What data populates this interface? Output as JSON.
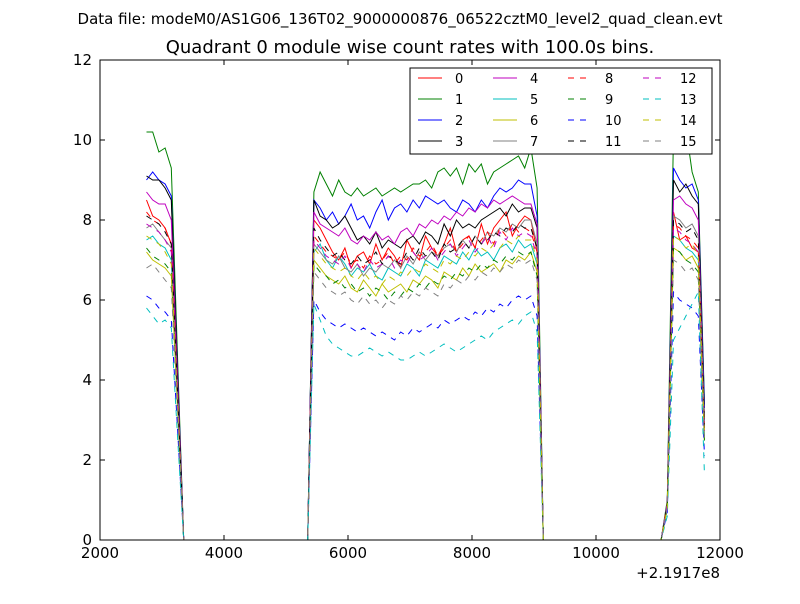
{
  "suptitle": "Data file: modeM0/AS1G06_136T02_9000000876_06522cztM0_level2_quad_clean.evt",
  "chart_data": {
    "type": "line",
    "title": "Quadrant 0 module wise count rates with 100.0s bins.",
    "xlabel": "",
    "ylabel": "",
    "x_offset_label": "+2.1917e8",
    "xlim": [
      2000,
      12000
    ],
    "ylim": [
      0,
      12
    ],
    "x_ticks": [
      2000,
      4000,
      6000,
      8000,
      10000,
      12000
    ],
    "y_ticks": [
      0,
      2,
      4,
      6,
      8,
      10,
      12
    ],
    "grid": false,
    "legend_position": "top-right",
    "legend_columns": 4,
    "x": [
      2750,
      2850,
      2950,
      3050,
      3150,
      3250,
      3350,
      3450,
      5350,
      5450,
      5550,
      5650,
      5750,
      5850,
      5950,
      6050,
      6150,
      6250,
      6350,
      6450,
      6550,
      6650,
      6750,
      6850,
      6950,
      7050,
      7150,
      7250,
      7350,
      7450,
      7550,
      7650,
      7750,
      7850,
      7950,
      8050,
      8150,
      8250,
      8350,
      8450,
      8550,
      8650,
      8750,
      8850,
      8950,
      9050,
      9150,
      9250,
      11050,
      11150,
      11250,
      11350,
      11450,
      11550,
      11650,
      11750
    ],
    "series": [
      {
        "name": "0",
        "color": "#ff0000",
        "dash": "solid",
        "base": [
          8.5,
          8.1,
          8.0,
          7.8,
          7.4,
          4.0,
          0,
          0,
          0,
          8.0,
          7.8,
          7.5,
          7.2,
          7.0,
          7.3,
          6.8,
          7.1,
          7.2,
          6.9,
          7.4,
          7.0,
          7.3,
          7.1,
          6.8,
          7.5,
          7.2,
          7.0,
          7.6,
          7.3,
          7.1,
          7.4,
          7.8,
          7.2,
          7.5,
          7.6,
          7.3,
          7.9,
          7.4,
          7.8,
          8.0,
          8.2,
          7.6,
          7.9,
          8.1,
          8.0,
          7.2,
          0,
          0,
          0,
          0.9,
          8.2,
          7.5,
          7.6,
          7.3,
          7.2,
          2.9
        ]
      },
      {
        "name": "1",
        "color": "#008000",
        "dash": "solid",
        "base": [
          10.2,
          10.2,
          9.7,
          9.8,
          9.3,
          4.6,
          0,
          0,
          0,
          8.7,
          9.2,
          8.9,
          8.6,
          9.0,
          8.7,
          8.6,
          8.8,
          8.6,
          8.7,
          8.8,
          8.6,
          8.7,
          8.8,
          8.7,
          8.8,
          8.9,
          8.9,
          9.0,
          8.8,
          9.2,
          9.3,
          9.1,
          9.3,
          8.9,
          9.4,
          9.2,
          9.4,
          8.9,
          9.2,
          9.3,
          9.4,
          9.5,
          9.6,
          9.3,
          9.8,
          8.8,
          0,
          0,
          0,
          1.0,
          10.2,
          10.3,
          10.3,
          9.2,
          8.7,
          3.4
        ]
      },
      {
        "name": "2",
        "color": "#0000ff",
        "dash": "solid",
        "base": [
          9.0,
          9.2,
          9.0,
          8.9,
          8.6,
          4.3,
          0,
          0,
          0,
          8.5,
          8.3,
          8.0,
          8.2,
          7.9,
          8.1,
          8.4,
          8.0,
          8.1,
          7.8,
          8.2,
          8.5,
          8.0,
          8.3,
          8.4,
          8.2,
          8.5,
          8.3,
          8.6,
          8.5,
          8.4,
          8.5,
          8.3,
          8.2,
          8.5,
          8.4,
          8.2,
          8.5,
          8.3,
          8.6,
          8.8,
          8.7,
          8.8,
          9.0,
          8.9,
          8.9,
          8.1,
          0,
          0,
          0,
          0.9,
          9.3,
          9.0,
          8.8,
          8.9,
          8.5,
          3.3
        ]
      },
      {
        "name": "3",
        "color": "#000000",
        "dash": "solid",
        "base": [
          9.1,
          9.0,
          9.0,
          8.8,
          8.5,
          4.2,
          0,
          0,
          0,
          8.5,
          8.1,
          8.0,
          7.8,
          7.9,
          8.1,
          7.8,
          7.5,
          7.6,
          7.4,
          7.7,
          7.3,
          7.5,
          7.4,
          7.3,
          7.5,
          7.6,
          7.4,
          7.7,
          7.6,
          7.4,
          7.9,
          7.6,
          8.0,
          7.8,
          7.9,
          7.8,
          8.0,
          8.1,
          8.2,
          8.3,
          8.1,
          8.4,
          8.2,
          8.3,
          8.3,
          7.8,
          0,
          0,
          0,
          0.9,
          9.0,
          8.7,
          8.9,
          8.6,
          8.4,
          3.0
        ]
      },
      {
        "name": "4",
        "color": "#bf00bf",
        "dash": "solid",
        "base": [
          8.7,
          8.5,
          8.4,
          8.4,
          8.0,
          4.0,
          0,
          0,
          0,
          8.2,
          7.9,
          7.8,
          7.7,
          7.6,
          7.8,
          7.5,
          7.4,
          7.6,
          7.5,
          7.7,
          7.5,
          7.6,
          7.4,
          7.7,
          7.8,
          7.6,
          7.9,
          7.8,
          8.0,
          7.9,
          8.1,
          8.0,
          8.2,
          8.1,
          8.3,
          8.2,
          8.4,
          8.3,
          8.5,
          8.4,
          8.5,
          8.6,
          8.5,
          8.4,
          8.4,
          7.9,
          0,
          0,
          0,
          0.9,
          8.5,
          8.6,
          8.4,
          8.3,
          8.0,
          2.8
        ]
      },
      {
        "name": "5",
        "color": "#00bfbf",
        "dash": "solid",
        "base": [
          7.5,
          7.6,
          7.4,
          7.3,
          7.0,
          3.5,
          0,
          0,
          0,
          7.2,
          7.4,
          7.0,
          6.8,
          7.1,
          6.9,
          6.6,
          6.8,
          6.7,
          6.9,
          6.6,
          6.5,
          6.8,
          6.7,
          6.6,
          6.9,
          6.8,
          6.6,
          7.0,
          6.9,
          6.8,
          7.1,
          7.0,
          6.9,
          7.2,
          7.0,
          7.3,
          7.1,
          7.2,
          7.0,
          7.3,
          7.4,
          7.2,
          7.5,
          7.3,
          7.4,
          6.9,
          0,
          0,
          0,
          0.8,
          7.6,
          7.5,
          7.3,
          7.2,
          7.0,
          2.6
        ]
      },
      {
        "name": "6",
        "color": "#bfbf00",
        "dash": "solid",
        "base": [
          7.2,
          7.0,
          6.9,
          6.8,
          6.6,
          3.3,
          0,
          0,
          0,
          7.0,
          6.8,
          6.6,
          6.5,
          6.4,
          6.6,
          6.3,
          6.2,
          6.5,
          6.3,
          6.1,
          6.4,
          6.2,
          6.3,
          6.4,
          6.2,
          6.5,
          6.4,
          6.6,
          6.5,
          6.3,
          6.7,
          6.6,
          6.5,
          6.8,
          6.6,
          6.9,
          6.7,
          6.8,
          6.9,
          6.7,
          7.0,
          6.9,
          7.1,
          7.0,
          7.2,
          6.7,
          0,
          0,
          0,
          0.8,
          7.3,
          7.2,
          7.0,
          7.1,
          6.8,
          2.5
        ]
      },
      {
        "name": "7",
        "color": "#808080",
        "dash": "solid",
        "base": [
          7.8,
          7.9,
          7.7,
          7.5,
          7.3,
          3.6,
          0,
          0,
          0,
          7.4,
          7.2,
          7.0,
          6.9,
          7.1,
          6.8,
          6.7,
          6.9,
          6.6,
          6.8,
          6.7,
          6.9,
          6.8,
          7.0,
          6.8,
          7.1,
          6.9,
          7.2,
          7.0,
          7.2,
          7.1,
          7.3,
          7.4,
          7.2,
          7.5,
          7.3,
          7.6,
          7.4,
          7.7,
          7.6,
          7.8,
          7.7,
          7.9,
          7.8,
          8.0,
          8.0,
          7.4,
          0,
          0,
          0,
          0.9,
          8.1,
          8.0,
          7.8,
          7.9,
          7.6,
          2.8
        ]
      },
      {
        "name": "8",
        "color": "#ff0000",
        "dash": "dashed",
        "base": [
          8.2,
          8.0,
          7.9,
          7.8,
          7.4,
          3.7,
          0,
          0,
          0,
          7.6,
          7.4,
          7.2,
          7.1,
          7.0,
          7.2,
          6.9,
          7.0,
          6.8,
          7.1,
          6.9,
          7.0,
          7.2,
          6.9,
          7.1,
          7.0,
          7.3,
          7.1,
          7.2,
          7.4,
          7.1,
          7.3,
          7.5,
          7.2,
          7.4,
          7.6,
          7.3,
          7.5,
          7.7,
          7.4,
          7.8,
          7.6,
          7.9,
          7.7,
          7.8,
          7.7,
          7.2,
          0,
          0,
          0,
          0.9,
          7.9,
          7.8,
          7.6,
          7.5,
          7.3,
          2.7
        ]
      },
      {
        "name": "9",
        "color": "#008000",
        "dash": "dashed",
        "base": [
          7.3,
          7.1,
          7.0,
          6.9,
          6.7,
          3.4,
          0,
          0,
          0,
          6.9,
          6.7,
          6.6,
          6.4,
          6.5,
          6.3,
          6.4,
          6.2,
          6.3,
          6.1,
          6.3,
          6.2,
          6.0,
          6.2,
          6.1,
          6.3,
          6.2,
          6.4,
          6.3,
          6.5,
          6.4,
          6.6,
          6.5,
          6.7,
          6.6,
          6.8,
          6.7,
          6.9,
          6.8,
          7.0,
          6.9,
          7.1,
          7.0,
          7.2,
          7.1,
          7.2,
          6.6,
          0,
          0,
          0,
          0.8,
          7.3,
          7.2,
          7.0,
          6.9,
          6.7,
          2.4
        ]
      },
      {
        "name": "10",
        "color": "#0000ff",
        "dash": "dashed",
        "base": [
          6.1,
          6.0,
          5.8,
          5.7,
          5.5,
          2.8,
          0,
          0,
          0,
          6.0,
          5.7,
          5.5,
          5.4,
          5.3,
          5.4,
          5.3,
          5.2,
          5.3,
          5.2,
          5.1,
          5.2,
          5.1,
          5.0,
          5.2,
          5.1,
          5.3,
          5.2,
          5.3,
          5.4,
          5.3,
          5.5,
          5.4,
          5.5,
          5.6,
          5.5,
          5.7,
          5.6,
          5.8,
          5.7,
          5.9,
          5.8,
          6.0,
          6.1,
          6.0,
          6.1,
          5.6,
          0,
          0,
          0,
          0.7,
          6.2,
          6.0,
          5.9,
          5.8,
          5.6,
          2.1
        ]
      },
      {
        "name": "11",
        "color": "#000000",
        "dash": "dashed",
        "base": [
          8.1,
          8.0,
          7.9,
          7.7,
          7.4,
          3.7,
          0,
          0,
          0,
          7.8,
          7.5,
          7.3,
          7.1,
          7.2,
          7.0,
          6.9,
          7.1,
          6.9,
          7.0,
          7.2,
          6.9,
          7.1,
          7.0,
          6.9,
          7.2,
          7.0,
          7.3,
          7.1,
          7.2,
          7.0,
          7.4,
          7.2,
          7.3,
          7.5,
          7.3,
          7.6,
          7.4,
          7.5,
          7.7,
          7.6,
          7.8,
          7.7,
          7.9,
          7.8,
          7.8,
          7.3,
          0,
          0,
          0,
          0.9,
          8.0,
          7.9,
          7.7,
          7.8,
          7.5,
          2.8
        ]
      },
      {
        "name": "12",
        "color": "#bf00bf",
        "dash": "dashed",
        "base": [
          7.9,
          7.8,
          7.7,
          7.5,
          7.2,
          3.6,
          0,
          0,
          0,
          7.5,
          7.3,
          7.1,
          7.0,
          6.9,
          7.1,
          6.8,
          6.9,
          6.7,
          7.0,
          6.8,
          6.9,
          7.1,
          6.8,
          7.0,
          6.9,
          7.2,
          7.0,
          7.1,
          7.3,
          7.0,
          7.2,
          7.4,
          7.1,
          7.3,
          7.5,
          7.2,
          7.4,
          7.6,
          7.3,
          7.7,
          7.5,
          7.8,
          7.6,
          7.7,
          7.6,
          7.1,
          0,
          0,
          0,
          0.9,
          7.8,
          7.7,
          7.5,
          7.4,
          7.2,
          2.6
        ]
      },
      {
        "name": "13",
        "color": "#00bfbf",
        "dash": "dashed",
        "base": [
          5.8,
          5.6,
          5.4,
          5.5,
          5.3,
          2.6,
          0,
          0,
          0,
          5.9,
          5.5,
          5.1,
          4.9,
          4.8,
          4.7,
          4.6,
          4.6,
          4.7,
          4.8,
          4.7,
          4.6,
          4.7,
          4.6,
          4.5,
          4.5,
          4.6,
          4.7,
          4.6,
          4.7,
          4.8,
          4.9,
          4.8,
          4.7,
          4.8,
          4.9,
          5.0,
          5.1,
          5.0,
          5.2,
          5.3,
          5.4,
          5.5,
          5.4,
          5.6,
          5.7,
          5.2,
          0,
          0,
          0,
          0.6,
          5.0,
          5.3,
          5.6,
          5.9,
          6.2,
          1.6
        ]
      },
      {
        "name": "14",
        "color": "#bfbf00",
        "dash": "dashed",
        "base": [
          7.6,
          7.5,
          7.4,
          7.2,
          6.9,
          3.5,
          0,
          0,
          0,
          7.3,
          7.1,
          6.9,
          6.8,
          6.7,
          6.8,
          6.6,
          6.5,
          6.7,
          6.5,
          6.6,
          6.4,
          6.6,
          6.5,
          6.7,
          6.6,
          6.8,
          6.7,
          6.9,
          6.8,
          6.7,
          7.0,
          6.9,
          7.1,
          7.0,
          7.2,
          7.1,
          7.3,
          7.2,
          7.4,
          7.3,
          7.5,
          7.4,
          7.6,
          7.5,
          7.5,
          7.0,
          0,
          0,
          0,
          0.8,
          7.6,
          7.5,
          7.3,
          7.4,
          7.1,
          2.6
        ]
      },
      {
        "name": "15",
        "color": "#808080",
        "dash": "dashed",
        "base": [
          6.8,
          6.9,
          6.7,
          6.5,
          6.3,
          3.2,
          0,
          0,
          0,
          6.7,
          6.5,
          6.3,
          6.2,
          6.1,
          6.2,
          6.0,
          5.9,
          6.1,
          5.9,
          6.0,
          5.8,
          6.0,
          5.9,
          6.1,
          6.0,
          6.2,
          6.1,
          6.3,
          6.2,
          6.1,
          6.4,
          6.3,
          6.5,
          6.4,
          6.6,
          6.5,
          6.7,
          6.6,
          6.8,
          6.7,
          6.9,
          6.8,
          7.0,
          6.9,
          7.0,
          6.5,
          0,
          0,
          0,
          0.8,
          7.0,
          6.9,
          6.7,
          6.8,
          6.5,
          2.4
        ]
      }
    ]
  }
}
